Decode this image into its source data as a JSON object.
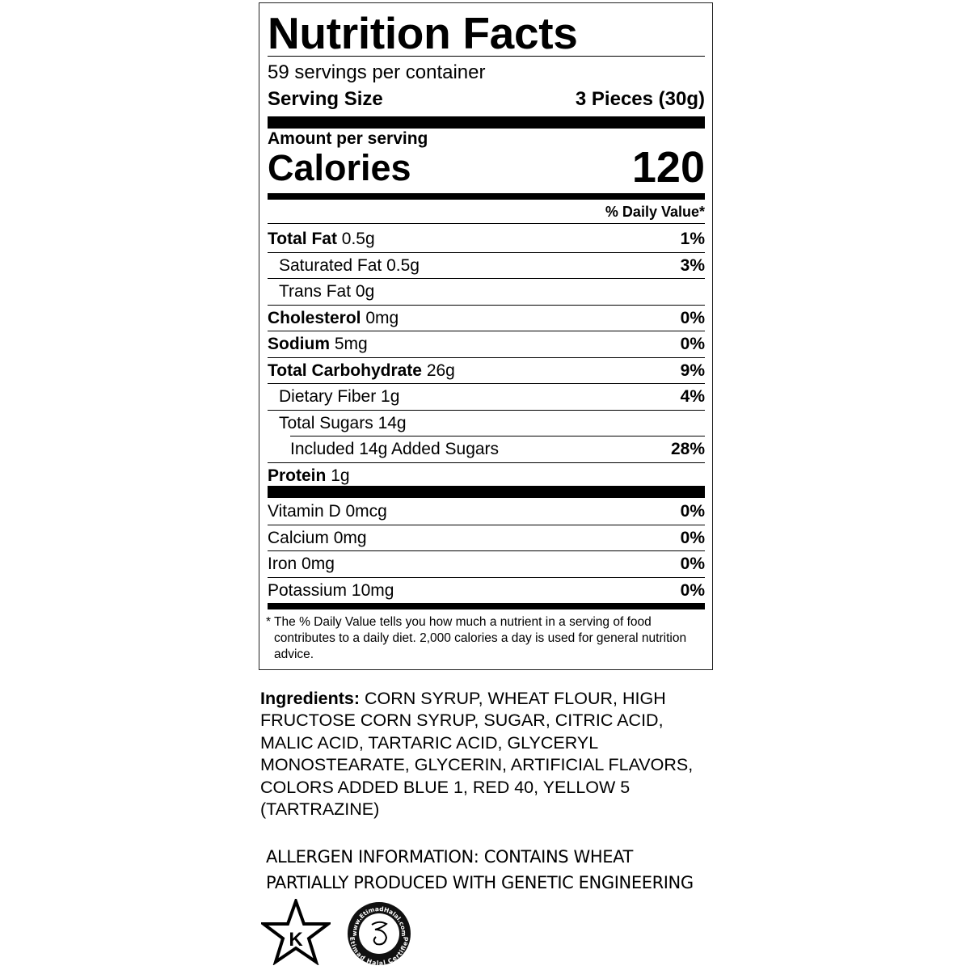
{
  "label": {
    "title": "Nutrition Facts",
    "servings_per_container": "59 servings per container",
    "serving_size_label": "Serving Size",
    "serving_size_value": "3 Pieces (30g)",
    "amount_per_serving": "Amount per serving",
    "calories_label": "Calories",
    "calories_value": "120",
    "daily_value_header": "% Daily Value*",
    "nutrients": [
      {
        "name": "Total Fat",
        "amount": "0.5g",
        "dv": "1%"
      },
      {
        "name": "Saturated Fat",
        "amount": "0.5g",
        "dv": "3%"
      },
      {
        "name": "Trans Fat",
        "amount": "0g",
        "dv": ""
      },
      {
        "name": "Cholesterol",
        "amount": "0mg",
        "dv": "0%"
      },
      {
        "name": "Sodium",
        "amount": "5mg",
        "dv": "0%"
      },
      {
        "name": "Total Carbohydrate",
        "amount": "26g",
        "dv": "9%"
      },
      {
        "name": "Dietary Fiber",
        "amount": "1g",
        "dv": "4%"
      },
      {
        "name": "Total Sugars",
        "amount": "14g",
        "dv": ""
      },
      {
        "name": "Included 14g Added Sugars",
        "amount": "",
        "dv": "28%"
      },
      {
        "name": "Protein",
        "amount": "1g",
        "dv": ""
      }
    ],
    "vitamins": [
      {
        "name": "Vitamin D",
        "amount": "0mcg",
        "dv": "0%"
      },
      {
        "name": "Calcium",
        "amount": "0mg",
        "dv": "0%"
      },
      {
        "name": "Iron",
        "amount": "0mg",
        "dv": "0%"
      },
      {
        "name": "Potassium",
        "amount": "10mg",
        "dv": "0%"
      }
    ],
    "footnote": "* The % Daily Value tells you how much a nutrient in a serving of food contributes to a daily diet. 2,000 calories a day is used for general nutrition advice."
  },
  "ingredients": {
    "label": "Ingredients:",
    "text": " CORN SYRUP, WHEAT FLOUR, HIGH FRUCTOSE CORN SYRUP, SUGAR, CITRIC ACID, MALIC ACID, TARTARIC ACID, GLYCERYL MONOSTEARATE, GLYCERIN, ARTIFICIAL FLAVORS, COLORS ADDED BLUE 1, RED 40, YELLOW 5 (TARTRAZINE)"
  },
  "allergen": "ALLERGEN INFORMATION: CONTAINS WHEAT",
  "ge_notice": "PARTIALLY PRODUCED WITH GENETIC ENGINEERING",
  "logos": {
    "kosher": {
      "icon": "star-k-kosher-icon",
      "letter": "K"
    },
    "halal": {
      "icon": "etimad-halal-seal-icon",
      "top_text": "www.EtimadHalal.com",
      "bottom_text": "Etimad Halal Certified"
    }
  }
}
